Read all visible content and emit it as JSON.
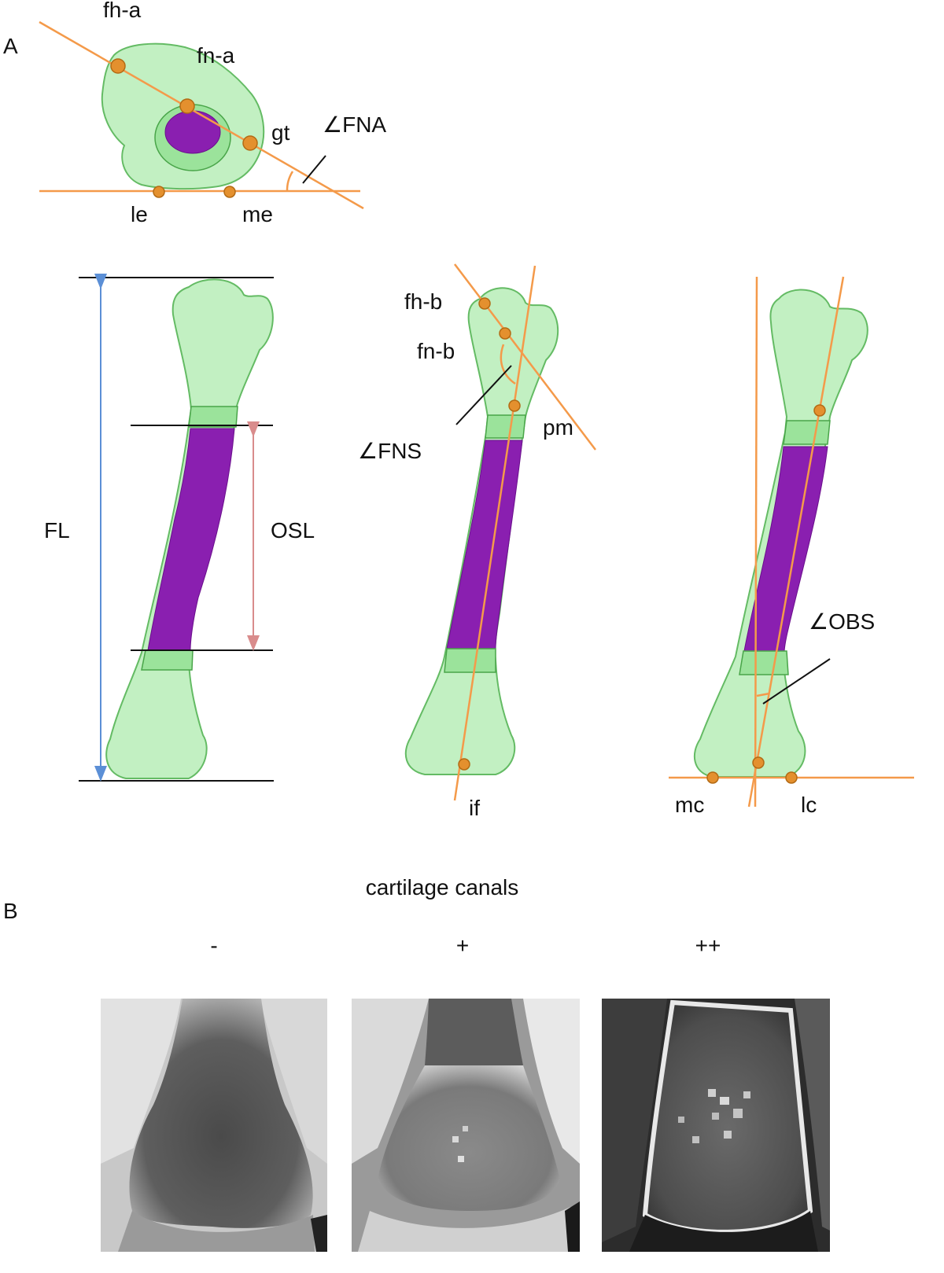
{
  "panels": {
    "a": "A",
    "b": "B"
  },
  "panel_a": {
    "landmarks": {
      "fh_a": "fh-a",
      "fn_a": "fn-a",
      "gt": "gt",
      "le": "le",
      "me": "me",
      "fh_b": "fh-b",
      "fn_b": "fn-b",
      "pm": "pm",
      "if": "if",
      "mc": "mc",
      "lc": "lc"
    },
    "angles": {
      "fna": "∠FNA",
      "fns": "∠FNS",
      "obs": "∠OBS"
    },
    "lengths": {
      "fl": "FL",
      "osl": "OSL"
    }
  },
  "panel_b": {
    "title": "cartilage canals",
    "columns": [
      "-",
      "+",
      "++"
    ]
  },
  "colors": {
    "bone": "#bff0bf",
    "ossified_shaft": "#8a1fb0",
    "axis_lines": "#f49a4a",
    "landmark_dots": "#e4902e",
    "fl_arrow": "#5b8fd6",
    "osl_arrow": "#d98c8c"
  }
}
